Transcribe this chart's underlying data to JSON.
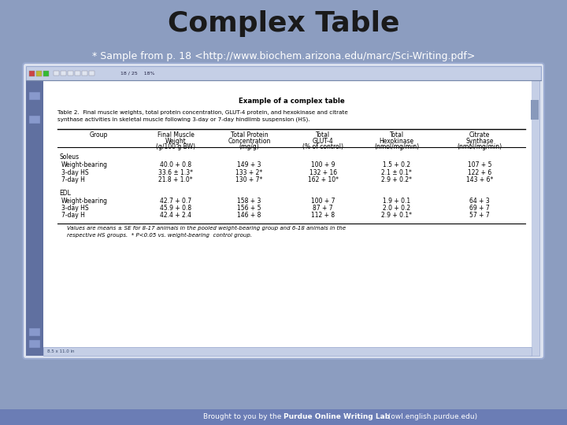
{
  "title": "Complex Table",
  "bg_color": "#8c9dc0",
  "title_color": "#1a1a1a",
  "title_fontsize": 26,
  "browser_bg": "#dde3f0",
  "toolbar_bg": "#c5cfe6",
  "sidebar_bg": "#6070a0",
  "doc_bg": "#ffffff",
  "scrollbar_bg": "#c5cfe6",
  "scrollbar_thumb": "#8899bb",
  "table_title": "Example of a complex table",
  "table_caption": "Table 2.  Final muscle weights, total protein concentration, GLUT-4 protein, and hexokinase and citrate\nsynthase activities in skeletal muscle following 3-day or 7-day hindlimb suspension (HS).",
  "col_headers": [
    "Group",
    "Final Muscle\nWeight\n(g/100 g BW)",
    "Total Protein\nConcentration\n(mg/g)",
    "Total\nGLUT-4\n(% of control)",
    "Total\nHexokinase\n(nmol/mg/min)",
    "Citrate\nSynthase\n(nmol/mg/min)"
  ],
  "soleus_label": "Soleus",
  "edl_label": "EDL",
  "rows": [
    [
      "Weight-bearing",
      "40.0 + 0.8",
      "149 + 3",
      "100 + 9",
      "1.5 + 0.2",
      "107 + 5"
    ],
    [
      "3-day HS",
      "33.6 ± 1.3*",
      "133 + 2*",
      "132 + 16",
      "2.1 ± 0.1*",
      "122 + 6"
    ],
    [
      "7-day H",
      "21.8 + 1.0*",
      "130 + 7*",
      "162 + 10*",
      "2.9 + 0.2*",
      "143 + 6*"
    ],
    [
      "Weight-bearing",
      "42.7 + 0.7",
      "158 + 3",
      "100 + 7",
      "1.9 + 0.1",
      "64 + 3"
    ],
    [
      "3-day HS",
      "45.9 + 0.8",
      "156 + 5",
      "87 + 7",
      "2.0 + 0.2",
      "69 + 7"
    ],
    [
      "7-day H",
      "42.4 + 2.4",
      "146 + 8",
      "112 + 8",
      "2.9 + 0.1*",
      "57 + 7"
    ]
  ],
  "footnote": "Values are means ± SE for 8-17 animals in the pooled weight-bearing group and 6-18 animals in the\nrespective HS groups.  * P<0.05 vs. weight-bearing  control group.",
  "bottom_text": "* Sample from p. 18 <http://www.biochem.arizona.edu/marc/Sci-Writing.pdf>",
  "purdue_text_normal": "Brought to you by the ",
  "purdue_text_bold": "Purdue Online Writing Lab",
  "purdue_text_end": " (owl.english.purdue.edu)",
  "toolbar_text": "18 / 25    18%",
  "status_text": "8.5 x 11.0 in"
}
